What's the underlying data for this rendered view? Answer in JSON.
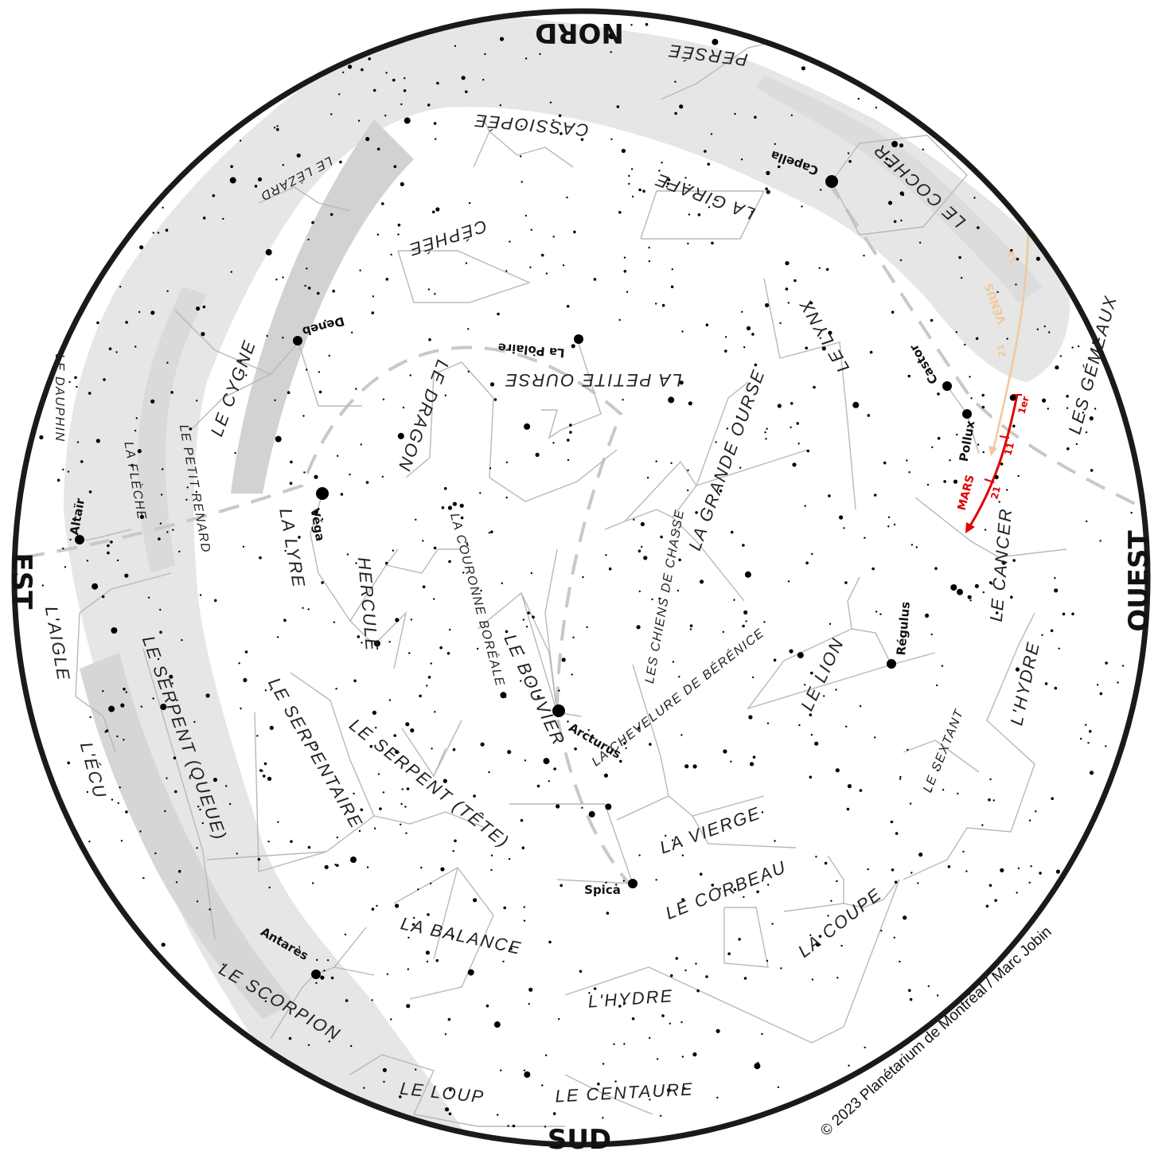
{
  "map": {
    "cardinals": {
      "north": "NORD",
      "south": "SUD",
      "east": "EST",
      "west": "OUEST"
    },
    "copyright": "© 2023 Planétarium de Montréal / Marc Jobin",
    "constellations": [
      "PERSÉE",
      "CASSIOPÉE",
      "LE LÉZARD",
      "CÉPHÉE",
      "LA GIRAFE",
      "LE COCHER",
      "LE LYNX",
      "LA PETITE OURSE",
      "LE DRAGON",
      "LE CYGNE",
      "LE DAUPHIN",
      "LA FLÈCHE",
      "LE PETIT RENARD",
      "LA LYRE",
      "HERCULE",
      "LA COURONNE BORÉALE",
      "LE BOUVIER",
      "LES CHIENS DE CHASSE",
      "LA GRANDE OURSE",
      "LES GÉMEAUX",
      "LE CANCER",
      "LE LION",
      "LA CHEVELURE DE BÉRÉNICE",
      "L'AIGLE",
      "L'ÉCU",
      "LE SERPENT (QUEUE)",
      "LE SERPENTAIRE",
      "LE SERPENT (TÊTE)",
      "LA VIERGE",
      "LE SEXTANT",
      "L'HYDRE",
      "LE CORBEAU",
      "LA COUPE",
      "LA BALANCE",
      "LE SCORPION",
      "LE LOUP",
      "LE CENTAURE"
    ],
    "stars": [
      "Capella",
      "Castor",
      "Pollux",
      "La Polaire",
      "Deneb",
      "Véga",
      "Altaïr",
      "Arcturus",
      "Régulus",
      "Spica",
      "Antarès"
    ],
    "planets": {
      "mars": {
        "name": "MARS",
        "color": "#e00000",
        "ticks": [
          "1er",
          "11",
          "21"
        ]
      },
      "venus": {
        "name": "VÉNUS",
        "color": "#f0c8a0",
        "ticks": [
          "1er",
          "11",
          "21"
        ]
      }
    },
    "colors": {
      "milky_way": "#e4e4e4",
      "milky_way_dense": "#cfcfcf",
      "lines": "#b8b8b8",
      "ecliptic": "#c8c8c8",
      "rim": "#1a1a1a"
    }
  }
}
